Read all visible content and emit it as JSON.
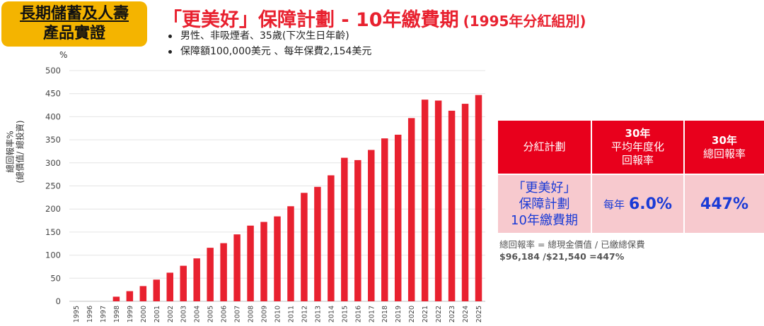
{
  "badge": {
    "line1": "長期儲蓄及人壽",
    "line2": "產品實證"
  },
  "title": {
    "main": "「更美好」保障計劃 - 10年繳費期",
    "sub": "(1995年分紅組別)"
  },
  "bullets": [
    "男性、非吸煙者、35歲(下次生日年齡)",
    "保障額100,000美元 、每年保費2,154美元"
  ],
  "axis_label": {
    "line1": "總回報率%",
    "line2": "(總價值/ 總投資)"
  },
  "colors": {
    "bar": "#e8212f",
    "table_header": "#e8001c",
    "table_body": "#f7c9ce",
    "highlight_text": "#1a3bd6",
    "badge": "#f4b400"
  },
  "chart_data": {
    "type": "bar",
    "unit": "%",
    "categories": [
      "1995",
      "1996",
      "1997",
      "1998",
      "1999",
      "2000",
      "2001",
      "2002",
      "2003",
      "2004",
      "2005",
      "2006",
      "2007",
      "2008",
      "2009",
      "2010",
      "2011",
      "2012",
      "2013",
      "2014",
      "2015",
      "2016",
      "2017",
      "2018",
      "2019",
      "2020",
      "2021",
      "2022",
      "2023",
      "2024",
      "2025"
    ],
    "values": [
      0,
      0,
      0,
      10,
      22,
      33,
      47,
      62,
      77,
      93,
      116,
      126,
      145,
      164,
      172,
      184,
      206,
      235,
      248,
      273,
      311,
      306,
      328,
      353,
      361,
      397,
      437,
      435,
      413,
      428,
      447
    ],
    "yticks": [
      0,
      50,
      100,
      150,
      200,
      250,
      300,
      350,
      400,
      450,
      500
    ],
    "ylim": [
      0,
      500
    ],
    "grid": true
  },
  "table": {
    "headers": [
      {
        "lines": [
          "分紅計劃"
        ]
      },
      {
        "lines": [
          "30年",
          "平均年度化",
          "回報率"
        ]
      },
      {
        "lines": [
          "30年",
          "總回報率"
        ]
      }
    ],
    "row": {
      "plan_lines": [
        "「更美好」",
        "保障計劃",
        "10年繳費期"
      ],
      "avg_prefix": "每年",
      "avg_value": "6.0%",
      "total": "447%"
    }
  },
  "note": {
    "line1": "總回報率 = 總現金價值 / 已繳總保費",
    "line2": "$96,184 /$21,540 =447%"
  }
}
